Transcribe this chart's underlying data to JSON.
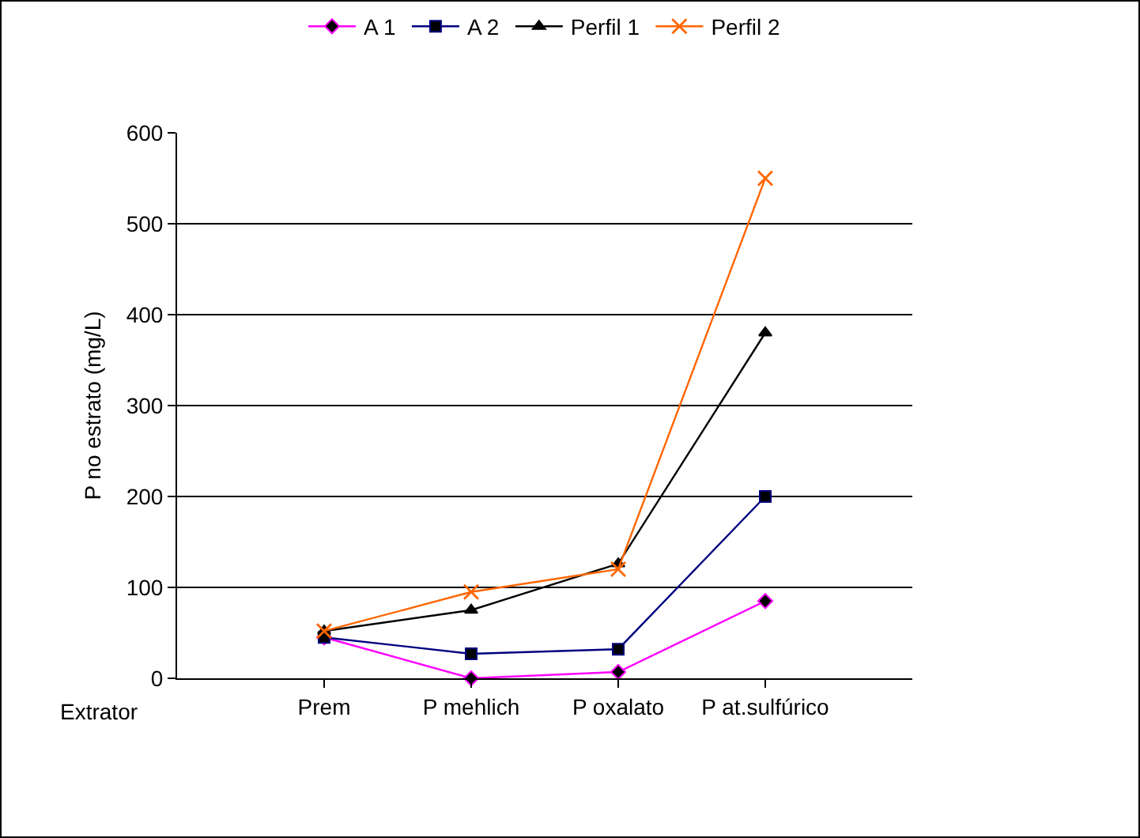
{
  "chart_data": {
    "type": "line",
    "xlabel": "Extrator",
    "ylabel": "P no estrato (mg/L)",
    "categories": [
      "Prem",
      "P mehlich",
      "P oxalato",
      "P at.sulfúrico"
    ],
    "series": [
      {
        "name": "A 1",
        "color": "#ff00ff",
        "marker": "diamond",
        "values": [
          45,
          0,
          7,
          85
        ]
      },
      {
        "name": "A 2",
        "color": "#000080",
        "marker": "square",
        "values": [
          45,
          27,
          32,
          200
        ]
      },
      {
        "name": "Perfil 1",
        "color": "#000000",
        "marker": "triangle",
        "values": [
          52,
          75,
          126,
          380
        ]
      },
      {
        "name": "Perfil 2",
        "color": "#ff6600",
        "marker": "cross",
        "values": [
          52,
          95,
          120,
          550
        ]
      }
    ],
    "ylim": [
      0,
      600
    ],
    "yticks": [
      0,
      100,
      200,
      300,
      400,
      500,
      600
    ],
    "grid": "y",
    "legend": "top"
  }
}
